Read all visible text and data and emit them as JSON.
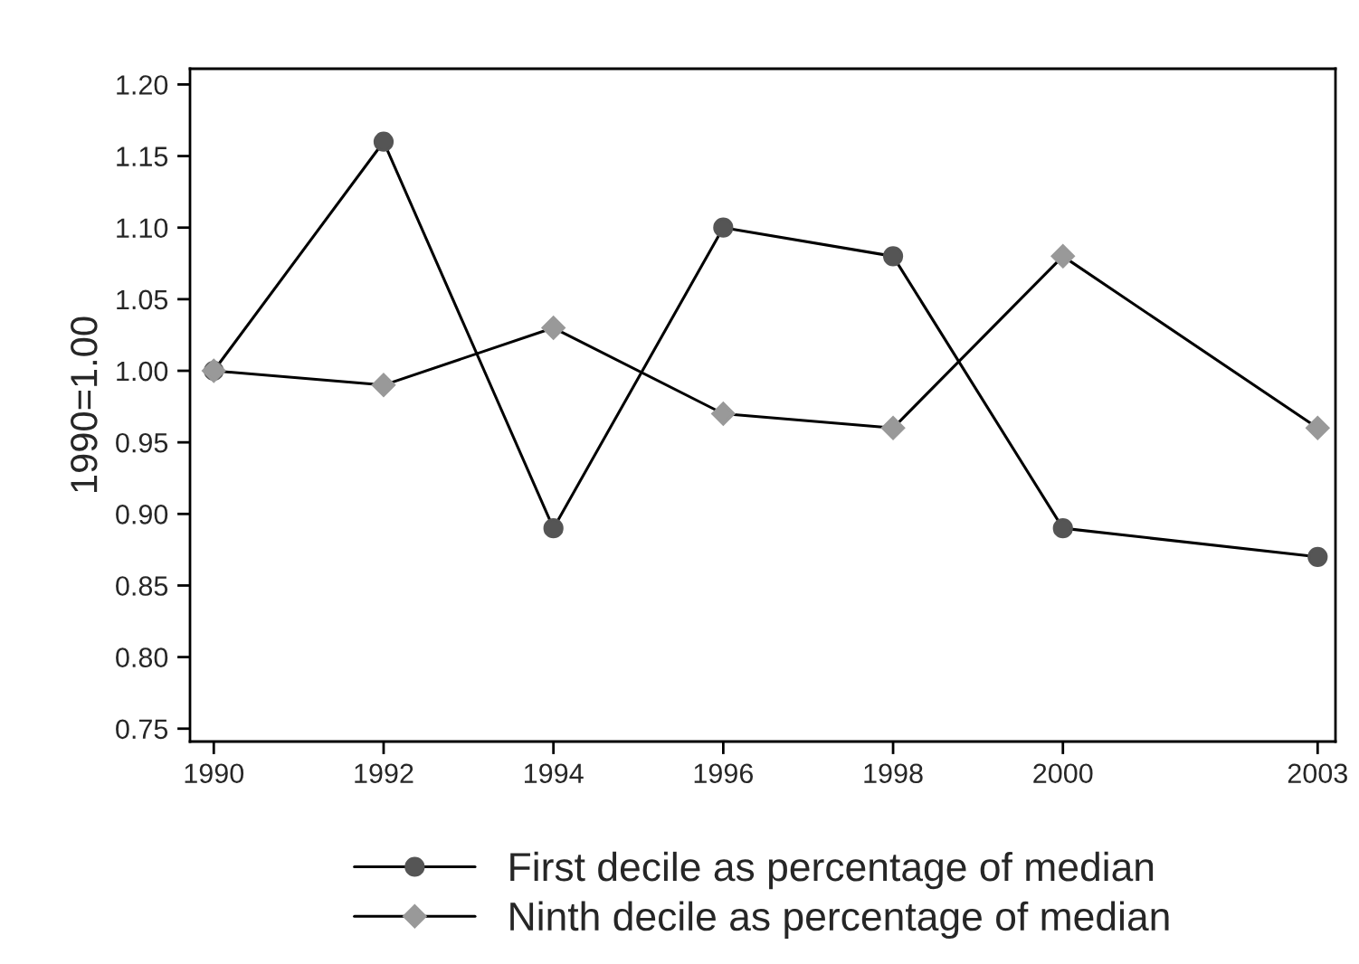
{
  "chart_data": {
    "type": "line",
    "ylabel": "1990=1.00",
    "x": [
      1990,
      1992,
      1994,
      1996,
      1998,
      2000,
      2003
    ],
    "series": [
      {
        "name": "First decile as percentage of median",
        "color": "#555555",
        "marker": "circle",
        "values": [
          1.0,
          1.16,
          0.89,
          1.1,
          1.08,
          0.89,
          0.87
        ]
      },
      {
        "name": "Ninth decile as percentage of median",
        "color": "#999999",
        "marker": "diamond",
        "values": [
          1.0,
          0.99,
          1.03,
          0.97,
          0.96,
          1.08,
          0.96
        ]
      }
    ],
    "xlim": [
      1989.72,
      2003.21
    ],
    "ylim": [
      0.741,
      1.211
    ],
    "xticks": [
      1990,
      1992,
      1994,
      1996,
      1998,
      2000,
      2003
    ],
    "yticks": [
      {
        "value": 0.75,
        "label": "0.75"
      },
      {
        "value": 0.8,
        "label": "0.80"
      },
      {
        "value": 0.85,
        "label": "0.85"
      },
      {
        "value": 0.9,
        "label": "0.90"
      },
      {
        "value": 0.95,
        "label": "0.95"
      },
      {
        "value": 1.0,
        "label": "1.00"
      },
      {
        "value": 1.05,
        "label": "1.05"
      },
      {
        "value": 1.1,
        "label": "1.10"
      },
      {
        "value": 1.15,
        "label": "1.15"
      },
      {
        "value": 1.2,
        "label": "1.20"
      }
    ],
    "grid": false,
    "legend": "bottom"
  }
}
